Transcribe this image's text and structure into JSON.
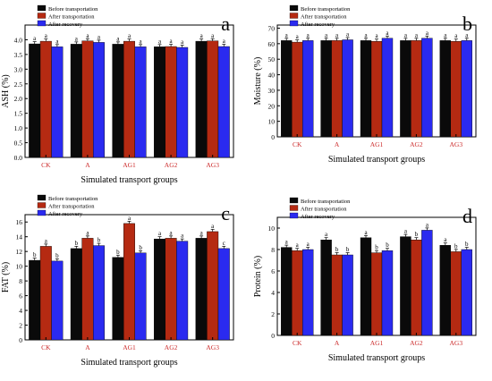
{
  "colors": {
    "before": "#0a0a0a",
    "after_transport": "#b52a12",
    "after_recovery": "#2a2af0",
    "axis": "#000000",
    "group_label": "#cc2a2a",
    "sig_letter": "#000000"
  },
  "chart_data": [
    {
      "type": "bar",
      "panel_letter": "a",
      "categories": [
        "CK",
        "A",
        "AG1",
        "AG2",
        "AG3"
      ],
      "xlabel": "Simulated transport groups",
      "ylabel": "ASH (%)",
      "ylim": [
        0,
        4.5
      ],
      "yticks": [
        0.0,
        0.5,
        1.0,
        1.5,
        2.0,
        2.5,
        3.0,
        3.5,
        4.0
      ],
      "tick_decimals": 1,
      "legend_position": "top-left",
      "legend": [
        "Before transportation",
        "After transportation",
        "After recovery"
      ],
      "series": [
        {
          "values": [
            3.86,
            3.85,
            3.85,
            3.76,
            3.95
          ],
          "letters": [
            "a",
            "a",
            "a",
            "a",
            "a"
          ]
        },
        {
          "values": [
            3.95,
            3.96,
            3.95,
            3.77,
            3.96
          ],
          "letters": [
            "a",
            "a",
            "a",
            "a",
            "a"
          ]
        },
        {
          "values": [
            3.76,
            3.91,
            3.76,
            3.74,
            3.77
          ],
          "letters": [
            "a",
            "a",
            "a",
            "a",
            "a"
          ]
        }
      ]
    },
    {
      "type": "bar",
      "panel_letter": "b",
      "categories": [
        "CK",
        "A",
        "AG1",
        "AG2",
        "AG3"
      ],
      "xlabel": "Simulated transport groups",
      "ylabel": "Moisture (%)",
      "ylim": [
        0,
        72
      ],
      "yticks": [
        0,
        10,
        20,
        30,
        40,
        50,
        60,
        70
      ],
      "tick_decimals": 0,
      "legend_position": "top-left",
      "legend": [
        "Before transportation",
        "After transportation",
        "After recovery"
      ],
      "series": [
        {
          "values": [
            62.0,
            62.0,
            62.0,
            62.0,
            62.0
          ],
          "letters": [
            "a",
            "a",
            "a",
            "a",
            "a"
          ]
        },
        {
          "values": [
            61.0,
            62.0,
            61.5,
            62.0,
            61.5
          ],
          "letters": [
            "a",
            "a",
            "a",
            "a",
            "a"
          ]
        },
        {
          "values": [
            62.0,
            62.5,
            63.5,
            63.5,
            62.0
          ],
          "letters": [
            "a",
            "a",
            "a",
            "a",
            "a"
          ]
        }
      ]
    },
    {
      "type": "bar",
      "panel_letter": "c",
      "categories": [
        "CK",
        "A",
        "AG1",
        "AG2",
        "AG3"
      ],
      "xlabel": "Simulated transport groups",
      "ylabel": "FAT (%)",
      "ylim": [
        0,
        17
      ],
      "yticks": [
        0,
        2,
        4,
        6,
        8,
        10,
        12,
        14,
        16
      ],
      "tick_decimals": 0,
      "legend_position": "top-left",
      "legend": [
        "Before transportation",
        "After transportation",
        "After recovery"
      ],
      "series": [
        {
          "values": [
            10.8,
            12.4,
            11.2,
            13.7,
            13.8
          ],
          "letters": [
            "b",
            "b",
            "b",
            "a",
            "a"
          ]
        },
        {
          "values": [
            12.7,
            13.8,
            15.8,
            13.8,
            14.7
          ],
          "letters": [
            "a",
            "a",
            "a",
            "a",
            "a"
          ]
        },
        {
          "values": [
            10.7,
            12.8,
            11.8,
            13.4,
            12.4
          ],
          "letters": [
            "b",
            "b",
            "b",
            "a",
            "c"
          ]
        }
      ]
    },
    {
      "type": "bar",
      "panel_letter": "d",
      "categories": [
        "CK",
        "A",
        "AG1",
        "AG2",
        "AG3"
      ],
      "xlabel": "Simulated transport groups",
      "ylabel": "Protein (%)",
      "ylim": [
        0,
        11
      ],
      "yticks": [
        0,
        2,
        4,
        6,
        8,
        10
      ],
      "tick_decimals": 0,
      "legend_position": "top-left",
      "legend": [
        "Before transportation",
        "After transportation",
        "After recovery"
      ],
      "series": [
        {
          "values": [
            8.2,
            8.9,
            9.1,
            9.2,
            8.4
          ],
          "letters": [
            "a",
            "a",
            "a",
            "a",
            "a"
          ]
        },
        {
          "values": [
            7.9,
            7.5,
            7.7,
            8.9,
            7.8
          ],
          "letters": [
            "a",
            "b",
            "b",
            "b",
            "b"
          ]
        },
        {
          "values": [
            8.0,
            7.5,
            7.9,
            9.8,
            8.0
          ],
          "letters": [
            "a",
            "b",
            "b",
            "a",
            "b"
          ]
        }
      ]
    }
  ]
}
